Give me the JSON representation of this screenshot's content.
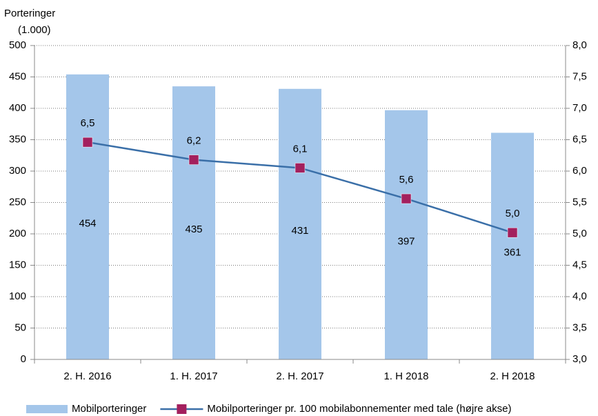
{
  "chart_data": {
    "type": "bar",
    "ylabel": "Porteringer",
    "ylabel_unit": "(1.000)",
    "categories": [
      "2. H. 2016",
      "1. H. 2017",
      "2. H. 2017",
      "1. H 2018",
      "2. H 2018"
    ],
    "series": [
      {
        "name": "Mobilporteringer",
        "type": "bar",
        "color": "#a4c6ea",
        "values": [
          454,
          435,
          431,
          397,
          361
        ]
      },
      {
        "name": "Mobilporteringer pr. 100 mobilabonnementer med tale (højre akse)",
        "type": "line",
        "axis": "y2",
        "color": "#3a6fa8",
        "marker_color": "#a3205e",
        "values": [
          6.46,
          6.18,
          6.05,
          5.56,
          5.02
        ],
        "value_labels": [
          "6,5",
          "6,2",
          "6,1",
          "5,6",
          "5,0"
        ]
      }
    ],
    "ylim": [
      0,
      500
    ],
    "yticks": [
      0,
      50,
      100,
      150,
      200,
      250,
      300,
      350,
      400,
      450,
      500
    ],
    "y2lim": [
      3,
      8
    ],
    "y2ticks": [
      {
        "value": 3,
        "label": "3,0"
      },
      {
        "value": 3.5,
        "label": "3,5"
      },
      {
        "value": 4,
        "label": "4,0"
      },
      {
        "value": 4.5,
        "label": "4,5"
      },
      {
        "value": 5,
        "label": "5,0"
      },
      {
        "value": 5.5,
        "label": "5,5"
      },
      {
        "value": 6,
        "label": "6,0"
      },
      {
        "value": 6.5,
        "label": "6,5"
      },
      {
        "value": 7,
        "label": "7,0"
      },
      {
        "value": 7.5,
        "label": "7,5"
      },
      {
        "value": 8,
        "label": "8,0"
      }
    ],
    "grid": true,
    "legend": "bottom"
  }
}
